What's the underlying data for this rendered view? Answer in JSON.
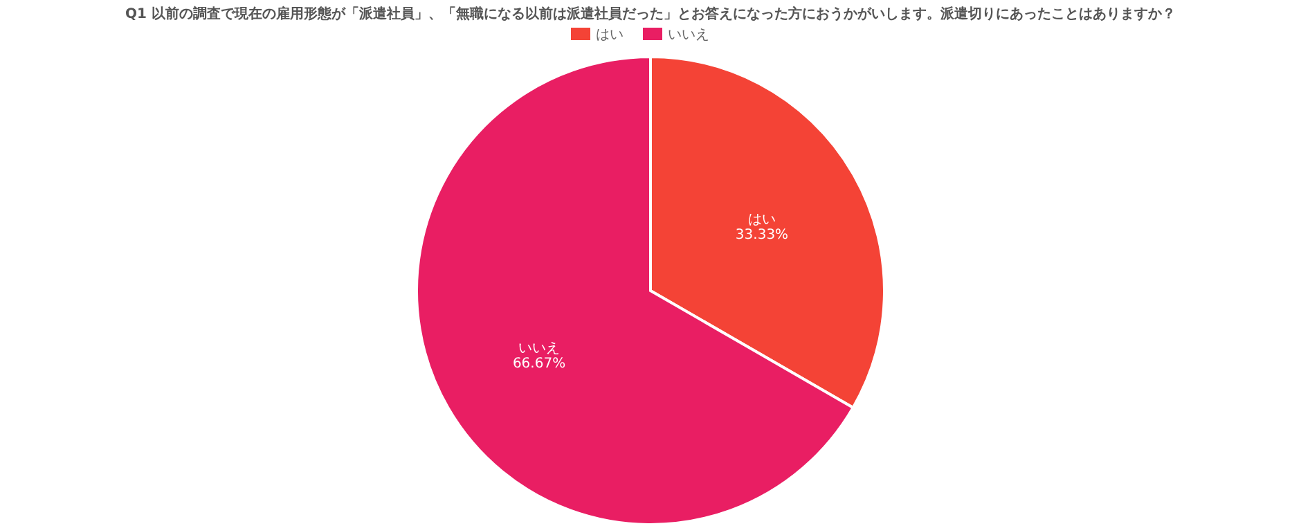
{
  "chart_data": {
    "type": "pie",
    "title": "Q1 以前の調査で現在の雇用形態が「派遣社員」、「無職になる以前は派遣社員だった」とお答えになった方におうかがいします。派遣切りにあったことはありますか？",
    "categories": [
      "はい",
      "いいえ"
    ],
    "values": [
      33.33,
      66.67
    ],
    "value_labels": [
      "33.33%",
      "66.67%"
    ],
    "colors": [
      "#f44336",
      "#e91e63"
    ],
    "legend": "top"
  }
}
